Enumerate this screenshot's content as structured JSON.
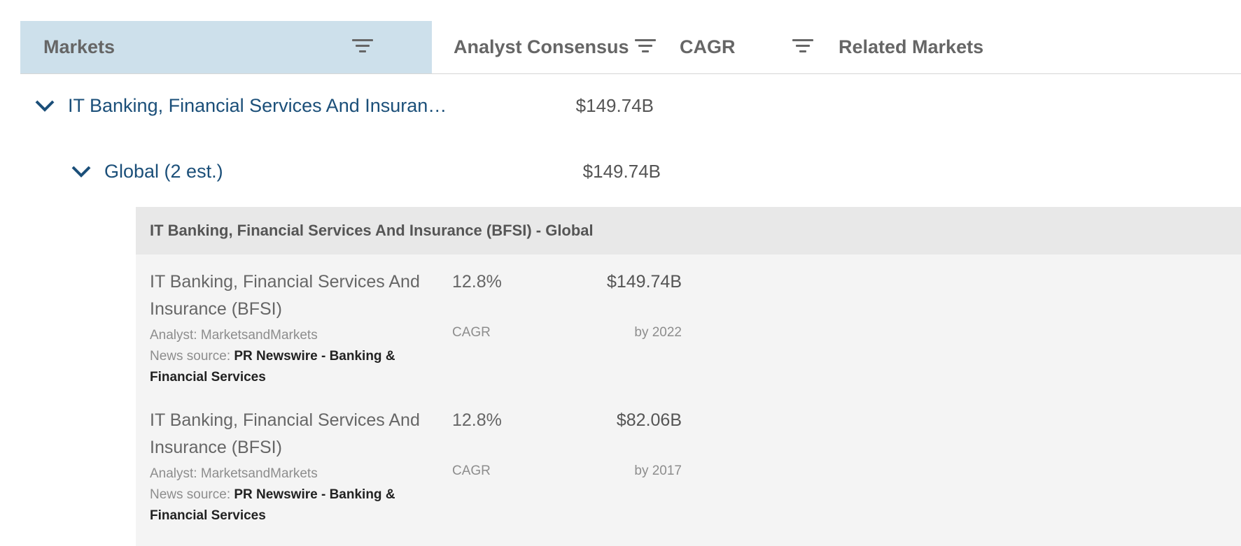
{
  "header": {
    "columns": [
      "Markets",
      "Analyst Consensus",
      "CAGR",
      "Related Markets"
    ],
    "filter_icon": "filter-icon"
  },
  "rows": [
    {
      "label": "IT Banking, Financial Services And Insurance (BFSI)",
      "value": "$149.74B",
      "expanded": true,
      "icon": "chevron-down-icon"
    },
    {
      "label": "Global (2 est.)",
      "value": "$149.74B",
      "expanded": true,
      "icon": "chevron-down-icon"
    }
  ],
  "panel": {
    "title": "IT Banking, Financial Services And Insurance (BFSI) - Global",
    "estimates": [
      {
        "name": "IT Banking, Financial Services And Insurance (BFSI)",
        "rate": "12.8%",
        "rate_label": "CAGR",
        "amount": "$149.74B",
        "year": "by 2022",
        "analyst": "Analyst: MarketsandMarkets",
        "news_prefix": "News source: ",
        "news_source": "PR Newswire - Banking & Financial Services"
      },
      {
        "name": "IT Banking, Financial Services And Insurance (BFSI)",
        "rate": "12.8%",
        "rate_label": "CAGR",
        "amount": "$82.06B",
        "year": "by 2017",
        "analyst": "Analyst: MarketsandMarkets",
        "news_prefix": "News source: ",
        "news_source": "PR Newswire - Banking & Financial Services"
      }
    ]
  },
  "colors": {
    "header_active_bg": "#cde0eb",
    "link": "#1b4f79",
    "panel_bg": "#f4f4f4",
    "panel_header_bg": "#e8e8e8"
  }
}
